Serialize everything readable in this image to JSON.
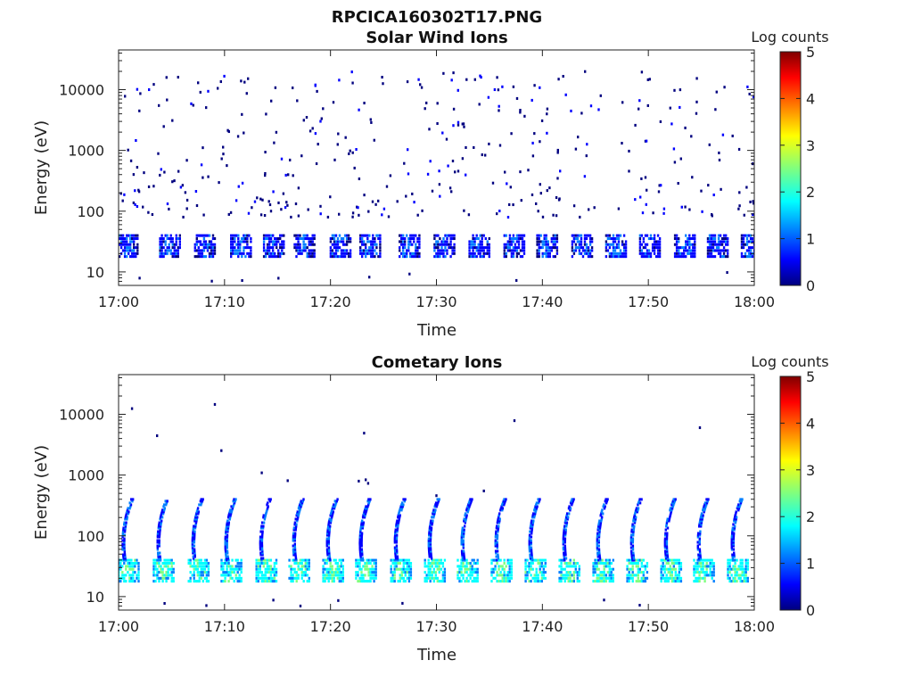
{
  "figure": {
    "filename": "RPCICA160302T17.PNG"
  },
  "colors": {
    "colormap": [
      "#00007f",
      "#0000ff",
      "#007fff",
      "#00ffff",
      "#7fff7f",
      "#ffff00",
      "#ff7f00",
      "#ff0000",
      "#7f0000"
    ],
    "axis": "#222222"
  },
  "chart_data": [
    {
      "type": "heatmap",
      "title": "Solar Wind Ions",
      "xlabel": "Time",
      "ylabel": "Energy (eV)",
      "yscale": "log",
      "ylim": [
        6,
        45000
      ],
      "xlim": [
        "17:00",
        "18:00"
      ],
      "xticks": [
        "17:00",
        "17:10",
        "17:20",
        "17:30",
        "17:40",
        "17:50",
        "18:00"
      ],
      "yticks": [
        "10",
        "100",
        "1000",
        "10000"
      ],
      "colorbar": {
        "label": "Log counts",
        "range": [
          0,
          5
        ],
        "ticks": [
          "0",
          "1",
          "2",
          "3",
          "4",
          "5"
        ]
      },
      "bursts_minutes": [
        0.5,
        4.5,
        7.8,
        11.2,
        14.3,
        17.2,
        20.6,
        23.4,
        27.1,
        30.4,
        33.7,
        37.0,
        40.1,
        43.4,
        46.6,
        49.8,
        53.1,
        56.2,
        59.4
      ],
      "core_energy_eV": [
        18,
        40
      ],
      "core_level": 0.7,
      "scatter_energy_eV": [
        80,
        20000
      ],
      "scatter_level": 0.25,
      "grid": false
    },
    {
      "type": "heatmap",
      "title": "Cometary Ions",
      "xlabel": "Time",
      "ylabel": "Energy (eV)",
      "yscale": "log",
      "ylim": [
        6,
        45000
      ],
      "xlim": [
        "17:00",
        "18:00"
      ],
      "xticks": [
        "17:00",
        "17:10",
        "17:20",
        "17:30",
        "17:40",
        "17:50",
        "18:00"
      ],
      "yticks": [
        "10",
        "100",
        "1000",
        "10000"
      ],
      "colorbar": {
        "label": "Log counts",
        "range": [
          0,
          5
        ],
        "ticks": [
          "0",
          "1",
          "2",
          "3",
          "4",
          "5"
        ]
      },
      "bursts_minutes": [
        0.6,
        3.9,
        7.2,
        10.3,
        13.6,
        16.7,
        19.9,
        23.0,
        26.3,
        29.5,
        32.6,
        35.8,
        39.0,
        42.2,
        45.4,
        48.6,
        51.8,
        54.9,
        58.1
      ],
      "core_energy_eV": [
        18,
        40
      ],
      "core_level": 1.9,
      "arc_energy_eV": [
        40,
        400
      ],
      "arc_level": 0.9,
      "grid": false
    }
  ]
}
